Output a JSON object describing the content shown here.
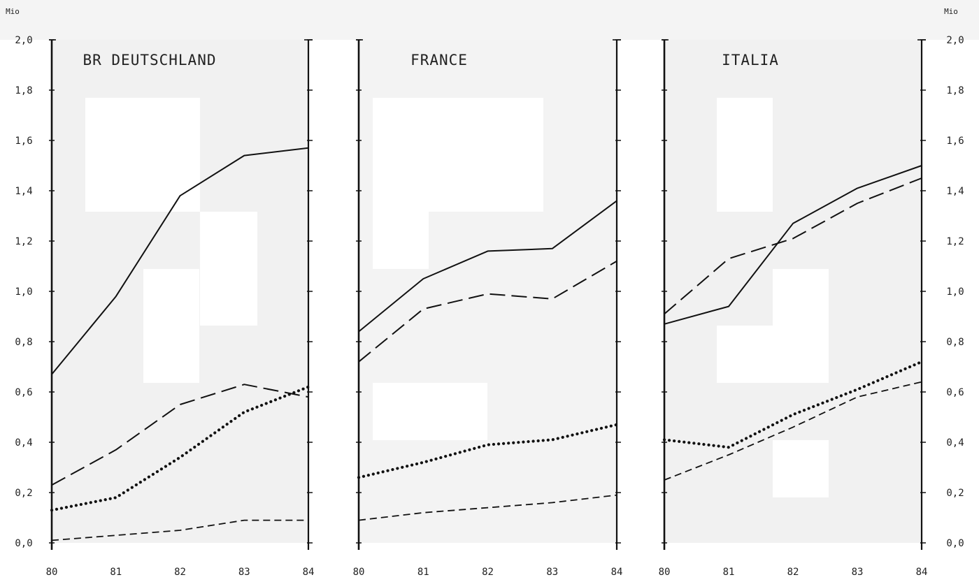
{
  "y_unit": "Mio",
  "y_ticks": [
    "0,0",
    "0,2",
    "0,4",
    "0,6",
    "0,8",
    "1,0",
    "1,2",
    "1,4",
    "1,6",
    "1,8",
    "2,0"
  ],
  "x_ticks": [
    "80",
    "81",
    "82",
    "83",
    "84"
  ],
  "chart_data": [
    {
      "type": "line",
      "title": "BR DEUTSCHLAND",
      "x": [
        80,
        81,
        82,
        83,
        84
      ],
      "ylim": [
        0,
        2.0
      ],
      "grid": false,
      "series": [
        {
          "style": "solid",
          "values": [
            0.67,
            0.98,
            1.38,
            1.54,
            1.57
          ]
        },
        {
          "style": "dashed",
          "values": [
            0.23,
            0.37,
            0.55,
            0.63,
            0.58
          ]
        },
        {
          "style": "dotted",
          "values": [
            0.13,
            0.18,
            0.34,
            0.52,
            0.62
          ]
        },
        {
          "style": "short-dashed",
          "values": [
            0.01,
            0.03,
            0.05,
            0.09,
            0.09
          ]
        }
      ]
    },
    {
      "type": "line",
      "title": "FRANCE",
      "x": [
        80,
        81,
        82,
        83,
        84
      ],
      "ylim": [
        0,
        2.0
      ],
      "grid": false,
      "series": [
        {
          "style": "solid",
          "values": [
            0.84,
            1.05,
            1.16,
            1.17,
            1.36
          ]
        },
        {
          "style": "dashed",
          "values": [
            0.72,
            0.93,
            0.99,
            0.97,
            1.12
          ]
        },
        {
          "style": "dotted",
          "values": [
            0.26,
            0.32,
            0.39,
            0.41,
            0.47
          ]
        },
        {
          "style": "short-dashed",
          "values": [
            0.09,
            0.12,
            0.14,
            0.16,
            0.19
          ]
        }
      ]
    },
    {
      "type": "line",
      "title": "ITALIA",
      "x": [
        80,
        81,
        82,
        83,
        84
      ],
      "ylim": [
        0,
        2.0
      ],
      "grid": false,
      "series": [
        {
          "style": "solid",
          "values": [
            0.87,
            0.94,
            1.27,
            1.41,
            1.5
          ]
        },
        {
          "style": "dashed",
          "values": [
            0.91,
            1.13,
            1.21,
            1.35,
            1.45
          ]
        },
        {
          "style": "dotted",
          "values": [
            0.41,
            0.38,
            0.51,
            0.61,
            0.72
          ]
        },
        {
          "style": "short-dashed",
          "values": [
            0.25,
            0.35,
            0.46,
            0.58,
            0.64
          ]
        }
      ]
    }
  ]
}
